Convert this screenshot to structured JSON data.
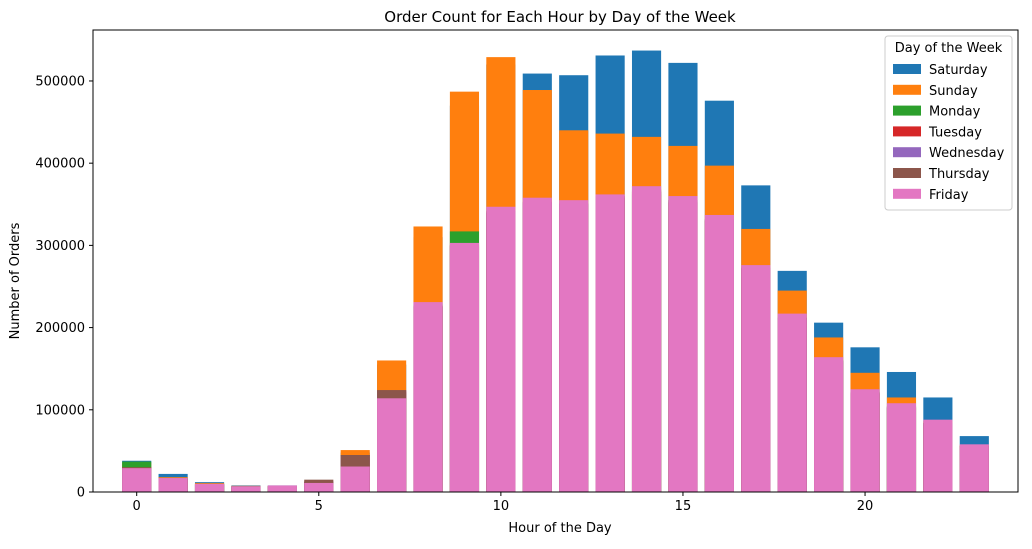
{
  "chart_data": {
    "type": "bar",
    "stacked_overlap": true,
    "title": "Order Count for Each Hour by Day of the Week",
    "xlabel": "Hour of the Day",
    "ylabel": "Number of Orders",
    "xlim": [
      -1.2,
      24.2
    ],
    "ylim": [
      0,
      562000
    ],
    "x_ticks": [
      0,
      5,
      10,
      15,
      20
    ],
    "y_ticks": [
      0,
      100000,
      200000,
      300000,
      400000,
      500000
    ],
    "grid": false,
    "legend": {
      "title": "Day of the Week",
      "placement": "top-right"
    },
    "categories": [
      0,
      1,
      2,
      3,
      4,
      5,
      6,
      7,
      8,
      9,
      10,
      11,
      12,
      13,
      14,
      15,
      16,
      17,
      18,
      19,
      20,
      21,
      22,
      23
    ],
    "series": [
      {
        "name": "Saturday",
        "color": "#1f77b4",
        "values": [
          38000,
          22000,
          12000,
          8000,
          8000,
          12000,
          48000,
          155000,
          310000,
          470000,
          520000,
          509000,
          507000,
          531000,
          537000,
          522000,
          476000,
          373000,
          269000,
          206000,
          176000,
          146000,
          115000,
          68000
        ]
      },
      {
        "name": "Sunday",
        "color": "#ff7f0e",
        "values": [
          35000,
          18000,
          11000,
          7500,
          7500,
          11000,
          51000,
          160000,
          323000,
          487000,
          529000,
          489000,
          440000,
          436000,
          432000,
          421000,
          397000,
          320000,
          245000,
          188000,
          145000,
          115000,
          86000,
          57000
        ]
      },
      {
        "name": "Monday",
        "color": "#2ca02c",
        "values": [
          37000,
          17000,
          10000,
          7000,
          7000,
          12000,
          45000,
          120000,
          228000,
          317000,
          340000,
          350000,
          348000,
          355000,
          362000,
          355000,
          330000,
          270000,
          212000,
          160000,
          122000,
          104000,
          84000,
          56000
        ]
      },
      {
        "name": "Tuesday",
        "color": "#d62728",
        "values": [
          30000,
          15000,
          9000,
          6500,
          6500,
          12500,
          44000,
          122000,
          226000,
          300000,
          340000,
          352000,
          350000,
          358000,
          365000,
          352000,
          330000,
          272000,
          210000,
          158000,
          120000,
          102000,
          82000,
          55000
        ]
      },
      {
        "name": "Wednesday",
        "color": "#9467bd",
        "values": [
          29000,
          15000,
          9000,
          6500,
          6500,
          13000,
          44000,
          123000,
          225000,
          298000,
          340000,
          352000,
          350000,
          358000,
          366000,
          353000,
          331000,
          272000,
          210000,
          159000,
          120000,
          103000,
          83000,
          55000
        ]
      },
      {
        "name": "Thursday",
        "color": "#8c564b",
        "values": [
          30000,
          16000,
          9500,
          7000,
          7000,
          15000,
          45000,
          124000,
          226000,
          300000,
          342000,
          353000,
          351000,
          360000,
          368000,
          355000,
          332000,
          273000,
          212000,
          160000,
          121000,
          104000,
          84000,
          56000
        ]
      },
      {
        "name": "Friday",
        "color": "#e377c2",
        "values": [
          29000,
          17000,
          10000,
          7000,
          8000,
          11000,
          31000,
          114000,
          231000,
          303000,
          347000,
          358000,
          355000,
          362000,
          372000,
          360000,
          337000,
          276000,
          217000,
          164000,
          125000,
          108000,
          88000,
          58000
        ]
      }
    ]
  }
}
